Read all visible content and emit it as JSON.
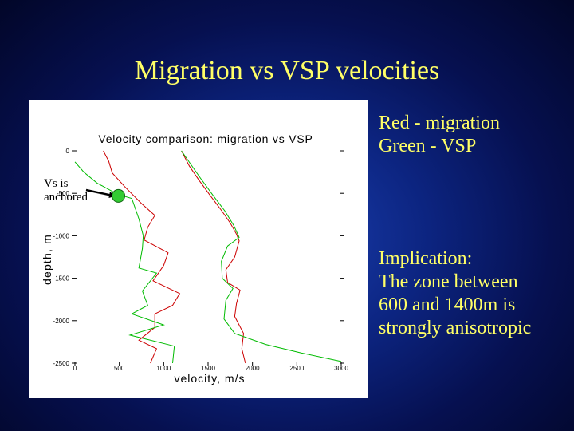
{
  "slide": {
    "title": "Migration vs VSP velocities",
    "legend_lines": [
      "Red - migration",
      "Green - VSP"
    ],
    "implication_lines": [
      "Implication:",
      "The zone between",
      "600 and 1400m is",
      "strongly anisotropic"
    ],
    "annotation_lines": [
      "Vs is",
      "anchored"
    ]
  },
  "colors": {
    "background": "#0c2480",
    "text": "#ffff66",
    "migration": "#cc0000",
    "vsp": "#00bb00",
    "marker": "#33cc33"
  },
  "chart_data": {
    "type": "line",
    "title": "Velocity comparison: migration vs VSP",
    "xlabel": "velocity, m/s",
    "ylabel": "depth, m",
    "xlim": [
      0,
      3000
    ],
    "ylim": [
      -2500,
      0
    ],
    "x_ticks": [
      "0",
      "500",
      "1000",
      "1500",
      "2000",
      "2500",
      "3000"
    ],
    "x_tick_values": [
      0,
      500,
      1000,
      1500,
      2000,
      2500,
      3000
    ],
    "y_ticks": [
      "0",
      "-500",
      "-1000",
      "-1500",
      "-2000",
      "-2500"
    ],
    "y_tick_values": [
      0,
      -500,
      -1000,
      -1500,
      -2000,
      -2500
    ],
    "grid": false,
    "series": [
      {
        "color": "red",
        "points": [
          [
            320,
            0
          ],
          [
            380,
            -120
          ],
          [
            420,
            -260
          ],
          [
            560,
            -420
          ],
          [
            750,
            -620
          ],
          [
            900,
            -760
          ],
          [
            820,
            -900
          ],
          [
            780,
            -1050
          ],
          [
            1050,
            -1200
          ],
          [
            1000,
            -1350
          ],
          [
            880,
            -1530
          ],
          [
            1180,
            -1680
          ],
          [
            1100,
            -1820
          ],
          [
            900,
            -1920
          ],
          [
            900,
            -2080
          ],
          [
            720,
            -2230
          ],
          [
            920,
            -2330
          ],
          [
            850,
            -2500
          ]
        ]
      },
      {
        "color": "red",
        "points": [
          [
            1200,
            0
          ],
          [
            1290,
            -180
          ],
          [
            1400,
            -350
          ],
          [
            1520,
            -520
          ],
          [
            1650,
            -700
          ],
          [
            1750,
            -850
          ],
          [
            1820,
            -980
          ],
          [
            1850,
            -1060
          ],
          [
            1800,
            -1250
          ],
          [
            1700,
            -1400
          ],
          [
            1720,
            -1550
          ],
          [
            1860,
            -1640
          ],
          [
            1820,
            -1800
          ],
          [
            1800,
            -1950
          ],
          [
            1900,
            -2150
          ],
          [
            1880,
            -2330
          ],
          [
            1920,
            -2500
          ]
        ]
      },
      {
        "color": "green",
        "points": [
          [
            0,
            -130
          ],
          [
            100,
            -250
          ],
          [
            250,
            -380
          ],
          [
            480,
            -510
          ],
          [
            640,
            -560
          ],
          [
            720,
            -800
          ],
          [
            770,
            -1000
          ],
          [
            760,
            -1150
          ],
          [
            720,
            -1380
          ],
          [
            920,
            -1440
          ],
          [
            760,
            -1650
          ],
          [
            820,
            -1820
          ],
          [
            640,
            -1920
          ],
          [
            1000,
            -2050
          ],
          [
            620,
            -2170
          ],
          [
            1120,
            -2300
          ],
          [
            1100,
            -2500
          ]
        ]
      },
      {
        "color": "green",
        "points": [
          [
            1200,
            0
          ],
          [
            1300,
            -150
          ],
          [
            1420,
            -330
          ],
          [
            1560,
            -530
          ],
          [
            1690,
            -710
          ],
          [
            1790,
            -880
          ],
          [
            1850,
            -1020
          ],
          [
            1720,
            -1120
          ],
          [
            1650,
            -1300
          ],
          [
            1660,
            -1500
          ],
          [
            1780,
            -1620
          ],
          [
            1700,
            -1760
          ],
          [
            1680,
            -1980
          ],
          [
            1800,
            -2150
          ],
          [
            2150,
            -2280
          ],
          [
            2550,
            -2380
          ],
          [
            3000,
            -2480
          ]
        ]
      }
    ],
    "marker": {
      "x": 490,
      "y": -530
    },
    "arrow": {
      "to_x": 440,
      "to_y": -530
    }
  }
}
